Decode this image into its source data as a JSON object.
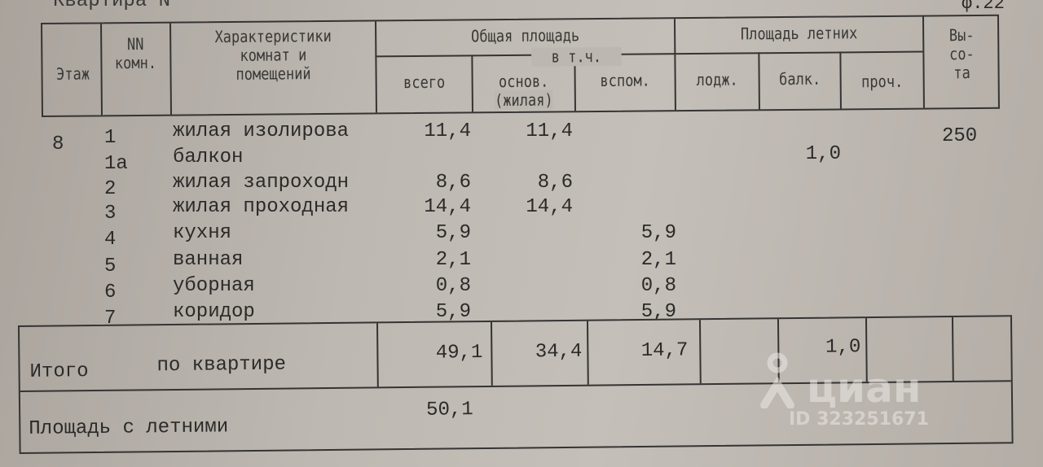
{
  "doc": {
    "title_partial": "Квартира N",
    "form_number": "ф.22"
  },
  "header": {
    "floor": "Этаж",
    "room_num": [
      "NN",
      "комн."
    ],
    "characteristics": [
      "Характеристики",
      "комнат и",
      "помещений"
    ],
    "total_area": "Общая площадь",
    "incl": "в т.ч.",
    "all": "всего",
    "main": [
      "основ.",
      "(жилая)"
    ],
    "aux": "вспом.",
    "summer_area": "Площадь летних",
    "loggia": "лодж.",
    "balcony": "балк.",
    "other": "проч.",
    "height": [
      "Вы-",
      "со-",
      "та"
    ]
  },
  "floor_value": "8",
  "height_value": "250",
  "rows": [
    {
      "num": "1",
      "name": "жилая изолирова",
      "total": "11,4",
      "main": "11,4",
      "aux": "",
      "balcony": ""
    },
    {
      "num": "1а",
      "name": "балкон",
      "total": "",
      "main": "",
      "aux": "",
      "balcony": "1,0"
    },
    {
      "num": "2",
      "name": "жилая запроходн",
      "total": "8,6",
      "main": "8,6",
      "aux": "",
      "balcony": ""
    },
    {
      "num": "3",
      "name": "жилая проходная",
      "total": "14,4",
      "main": "14,4",
      "aux": "",
      "balcony": ""
    },
    {
      "num": "4",
      "name": "кухня",
      "total": "5,9",
      "main": "",
      "aux": "5,9",
      "balcony": ""
    },
    {
      "num": "5",
      "name": "ванная",
      "total": "2,1",
      "main": "",
      "aux": "2,1",
      "balcony": ""
    },
    {
      "num": "6",
      "name": "уборная",
      "total": "0,8",
      "main": "",
      "aux": "0,8",
      "balcony": ""
    },
    {
      "num": "7",
      "name": "коридор",
      "total": "5,9",
      "main": "",
      "aux": "5,9",
      "balcony": ""
    }
  ],
  "totals": {
    "label1": "Итого",
    "label2": "по квартире",
    "total": "49,1",
    "main": "34,4",
    "aux": "14,7",
    "balcony": "1,0"
  },
  "with_summer": {
    "label": "Площадь с летними",
    "value": "50,1"
  },
  "watermark": {
    "brand": "циан",
    "id": "ID 323251671"
  }
}
